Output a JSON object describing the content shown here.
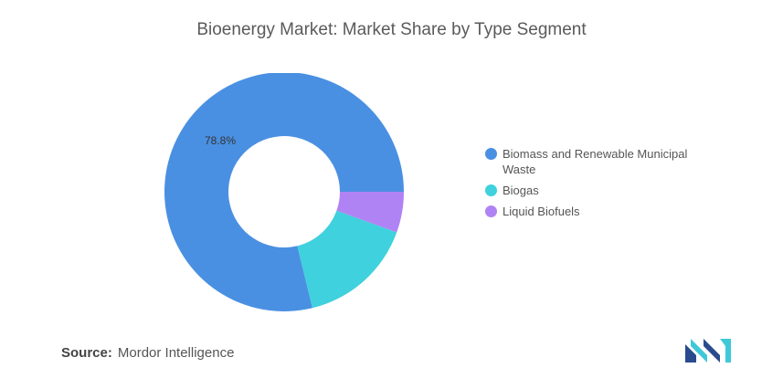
{
  "chart_data": {
    "type": "pie",
    "title": "Bioenergy Market: Market Share by Type Segment",
    "categories": [
      "Biomass and Renewable Municipal Waste",
      "Biogas",
      "Liquid Biofuels"
    ],
    "values": [
      78.8,
      15.7,
      5.5
    ],
    "data_labels": [
      "78.8%",
      "",
      ""
    ],
    "colors": [
      "#4a90e2",
      "#3fd1dd",
      "#b083f4"
    ],
    "donut": true,
    "legend_position": "right"
  },
  "source": {
    "label": "Source:",
    "text": "Mordor Intelligence"
  },
  "logo": {
    "icon": "mordor-intelligence-logo-icon",
    "colors": [
      "#2a4b8d",
      "#3fc8d8"
    ]
  }
}
